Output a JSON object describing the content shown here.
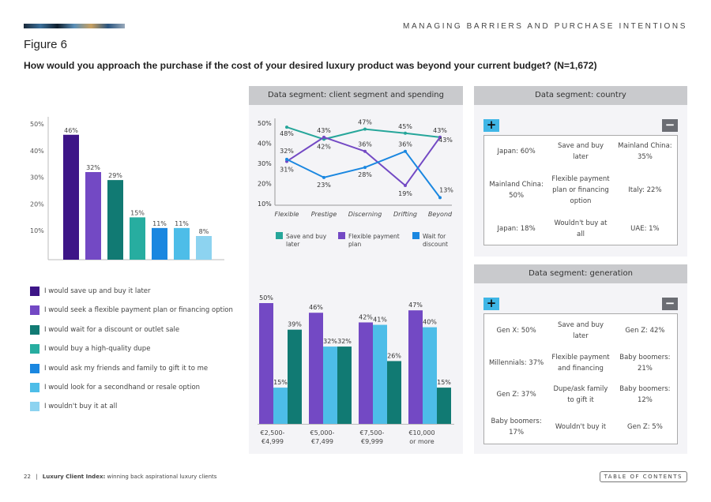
{
  "header": {
    "section": "MANAGING BARRIERS AND PURCHASE INTENTIONS",
    "figure": "Figure 6",
    "question": "How would you approach the purchase if the cost of your desired luxury product was beyond your current budget? (N=1,672)"
  },
  "chart_data": [
    {
      "type": "bar",
      "yticks": [
        "50%",
        "40%",
        "30%",
        "20%",
        "10%"
      ],
      "ylim": [
        0,
        50
      ],
      "categories": [
        "I would save up and buy it later",
        "I would seek a flexible payment plan or financing option",
        "I would wait for a discount or outlet sale",
        "I would buy a high-quality dupe",
        "I would ask my friends and family to gift it to me",
        "I would look for a secondhand or resale option",
        "I wouldn't buy it at all"
      ],
      "values": [
        46,
        32,
        29,
        15,
        11,
        11,
        8
      ],
      "colors": [
        "#3d1587",
        "#7349c4",
        "#117a73",
        "#27ada0",
        "#1a87e0",
        "#4dbde8",
        "#8dd3f0"
      ],
      "legend": "bottom"
    },
    {
      "type": "line",
      "panel_title": "Data segment: client segment and spending",
      "categories": [
        "Flexible",
        "Prestige",
        "Discerning",
        "Drifting",
        "Beyond"
      ],
      "yticks": [
        "50%",
        "40%",
        "30%",
        "20%",
        "10%"
      ],
      "ylim": [
        10,
        50
      ],
      "series": [
        {
          "name": "Save and buy later",
          "color": "#26a69a",
          "values": [
            48,
            42,
            47,
            45,
            43
          ]
        },
        {
          "name": "Flexible payment plan",
          "color": "#7349c4",
          "values": [
            31,
            43,
            36,
            19,
            43
          ]
        },
        {
          "name": "Wait for discount",
          "color": "#1a87e0",
          "values": [
            32,
            23,
            28,
            36,
            13
          ]
        }
      ]
    },
    {
      "type": "bar",
      "categories": [
        "€2,500-\n€4,999",
        "€5,000-\n€7,499",
        "€7,500-\n€9,999",
        "€10,000\nor more"
      ],
      "series": [
        {
          "color": "#7349c4",
          "values": [
            50,
            46,
            42,
            47
          ]
        },
        {
          "color": "#4dbde8",
          "values": [
            15,
            32,
            41,
            40
          ]
        },
        {
          "color": "#117a73",
          "values": [
            39,
            32,
            26,
            15
          ]
        }
      ]
    }
  ],
  "country": {
    "title": "Data segment: country",
    "plus": "+",
    "minus": "−",
    "rows": [
      [
        "Japan: 60%",
        "Save and buy later",
        "Mainland China: 35%"
      ],
      [
        "Mainland China: 50%",
        "Flexible payment plan or financing option",
        "Italy: 22%"
      ],
      [
        "Japan: 18%",
        "Wouldn't buy at all",
        "UAE: 1%"
      ]
    ]
  },
  "generation": {
    "title": "Data segment: generation",
    "plus": "+",
    "minus": "−",
    "rows": [
      [
        "Gen X: 50%",
        "Save and buy later",
        "Gen Z: 42%"
      ],
      [
        "Millennials: 37%",
        "Flexible payment and financing",
        "Baby boomers: 21%"
      ],
      [
        "Gen Z: 37%",
        "Dupe/ask family to gift it",
        "Baby boomers: 12%"
      ],
      [
        "Baby boomers: 17%",
        "Wouldn't buy it",
        "Gen Z: 5%"
      ]
    ]
  },
  "footer": {
    "page": "22",
    "sep": "|",
    "title": "Luxury Client Index:",
    "subtitle": "winning back aspirational luxury clients",
    "toc": "TABLE OF CONTENTS"
  }
}
